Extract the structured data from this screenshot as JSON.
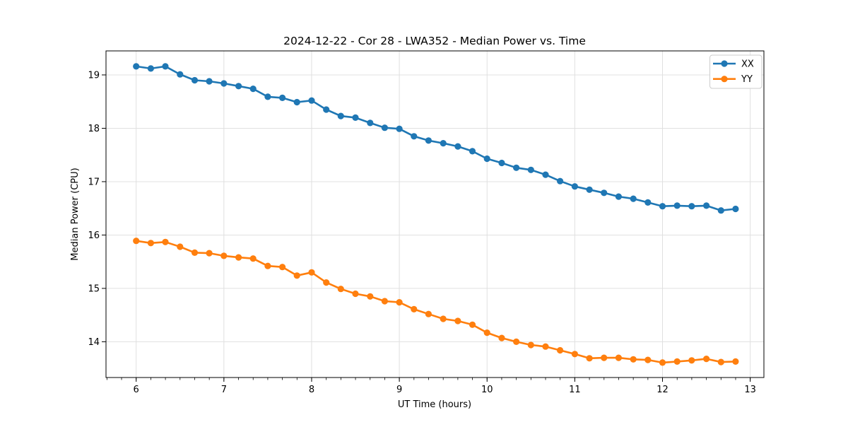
{
  "chart_data": {
    "type": "line",
    "title": "2024-12-22 - Cor 28 - LWA352 - Median Power vs. Time",
    "xlabel": "UT Time (hours)",
    "ylabel": "Median Power (CPU)",
    "xlim": [
      5.656,
      13.156
    ],
    "ylim": [
      13.33,
      19.45
    ],
    "xticks": [
      6,
      7,
      8,
      9,
      10,
      11,
      12,
      13
    ],
    "yticks": [
      14,
      15,
      16,
      17,
      18,
      19
    ],
    "x_minor_tick_step": 0.16667,
    "grid": true,
    "marker": "circle",
    "legend": {
      "position": "upper right",
      "entries": [
        "XX",
        "YY"
      ]
    },
    "colors": {
      "series_xx": "#1f77b4",
      "series_yy": "#ff7f0e",
      "grid": "#e0e0e0",
      "spine": "#000000",
      "legend_border": "#cccccc"
    },
    "x": [
      6.0,
      6.167,
      6.333,
      6.5,
      6.667,
      6.833,
      7.0,
      7.167,
      7.333,
      7.5,
      7.667,
      7.833,
      8.0,
      8.167,
      8.333,
      8.5,
      8.667,
      8.833,
      9.0,
      9.167,
      9.333,
      9.5,
      9.667,
      9.833,
      10.0,
      10.167,
      10.333,
      10.5,
      10.667,
      10.833,
      11.0,
      11.167,
      11.333,
      11.5,
      11.667,
      11.833,
      12.0,
      12.167,
      12.333,
      12.5,
      12.667,
      12.833
    ],
    "series": [
      {
        "name": "XX",
        "color": "#1f77b4",
        "values": [
          19.16,
          19.12,
          19.16,
          19.01,
          18.9,
          18.88,
          18.84,
          18.79,
          18.74,
          18.59,
          18.57,
          18.49,
          18.52,
          18.35,
          18.23,
          18.2,
          18.1,
          18.01,
          17.99,
          17.85,
          17.77,
          17.72,
          17.66,
          17.57,
          17.43,
          17.35,
          17.26,
          17.22,
          17.13,
          17.01,
          16.91,
          16.85,
          16.79,
          16.72,
          16.68,
          16.61,
          16.54,
          16.55,
          16.54,
          16.55,
          16.46,
          16.49
        ]
      },
      {
        "name": "YY",
        "color": "#ff7f0e",
        "values": [
          15.89,
          15.85,
          15.87,
          15.78,
          15.67,
          15.66,
          15.61,
          15.58,
          15.56,
          15.42,
          15.4,
          15.24,
          15.3,
          15.11,
          14.99,
          14.9,
          14.85,
          14.76,
          14.74,
          14.61,
          14.52,
          14.43,
          14.39,
          14.32,
          14.17,
          14.07,
          14.0,
          13.94,
          13.91,
          13.84,
          13.77,
          13.69,
          13.7,
          13.7,
          13.67,
          13.66,
          13.61,
          13.63,
          13.65,
          13.68,
          13.62,
          13.63
        ]
      }
    ]
  }
}
